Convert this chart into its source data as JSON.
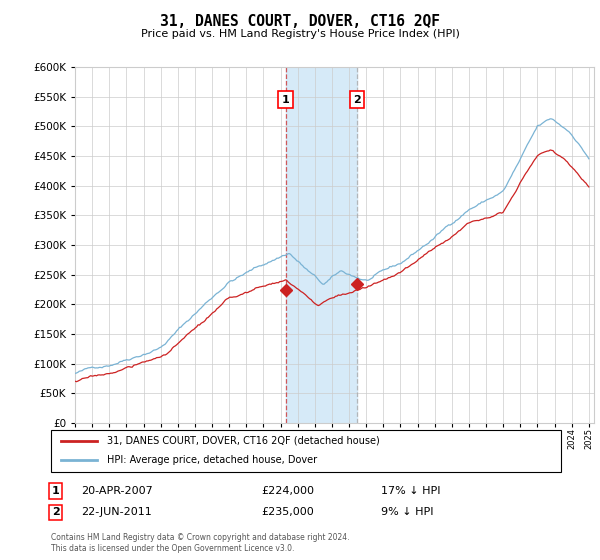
{
  "title": "31, DANES COURT, DOVER, CT16 2QF",
  "subtitle": "Price paid vs. HM Land Registry's House Price Index (HPI)",
  "x_start_year": 1995,
  "x_end_year": 2025,
  "y_min": 0,
  "y_max": 600000,
  "y_ticks": [
    0,
    50000,
    100000,
    150000,
    200000,
    250000,
    300000,
    350000,
    400000,
    450000,
    500000,
    550000,
    600000
  ],
  "hpi_color": "#7ab3d4",
  "price_color": "#cc2222",
  "sale1_year": 2007.3,
  "sale1_price": 224000,
  "sale2_year": 2011.47,
  "sale2_price": 235000,
  "legend_label1": "31, DANES COURT, DOVER, CT16 2QF (detached house)",
  "legend_label2": "HPI: Average price, detached house, Dover",
  "table_row1": [
    "1",
    "20-APR-2007",
    "£224,000",
    "17% ↓ HPI"
  ],
  "table_row2": [
    "2",
    "22-JUN-2011",
    "£235,000",
    "9% ↓ HPI"
  ],
  "footnote": "Contains HM Land Registry data © Crown copyright and database right 2024.\nThis data is licensed under the Open Government Licence v3.0.",
  "background_color": "#ffffff",
  "grid_color": "#cccccc",
  "shaded_region_color": "#d6eaf8"
}
